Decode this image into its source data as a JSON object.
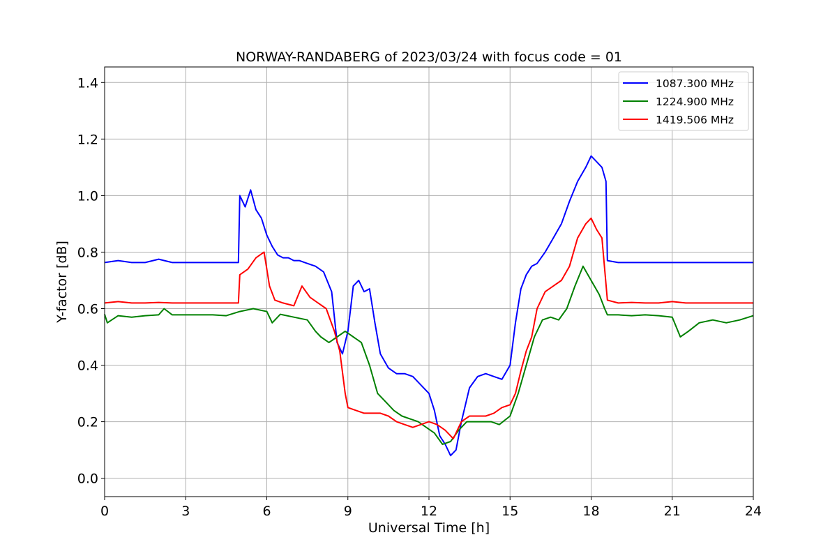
{
  "chart_data": {
    "type": "line",
    "title": "NORWAY-RANDABERG of 2023/03/24 with focus code = 01",
    "xlabel": "Universal Time [h]",
    "ylabel": "Y-factor [dB]",
    "xlim": [
      0,
      24
    ],
    "ylim": [
      -0.065,
      1.455
    ],
    "xticks": [
      0,
      3,
      6,
      9,
      12,
      15,
      18,
      21,
      24
    ],
    "yticks": [
      0.0,
      0.2,
      0.4,
      0.6,
      0.8,
      1.0,
      1.2,
      1.4
    ],
    "ytick_labels": [
      "0.0",
      "0.2",
      "0.4",
      "0.6",
      "0.8",
      "1.0",
      "1.2",
      "1.4"
    ],
    "grid": true,
    "legend_position": "top-right",
    "series": [
      {
        "name": "1087.300 MHz",
        "color": "#0000ff",
        "x": [
          0,
          0.5,
          1.0,
          1.5,
          2.0,
          2.5,
          3.0,
          3.5,
          4.0,
          4.5,
          4.95,
          5.0,
          5.2,
          5.4,
          5.6,
          5.8,
          6.0,
          6.2,
          6.4,
          6.6,
          6.8,
          7.0,
          7.2,
          7.5,
          7.8,
          8.1,
          8.4,
          8.6,
          8.8,
          9.0,
          9.2,
          9.4,
          9.6,
          9.8,
          10.0,
          10.2,
          10.5,
          10.8,
          11.1,
          11.4,
          11.7,
          12.0,
          12.2,
          12.4,
          12.6,
          12.8,
          13.0,
          13.2,
          13.5,
          13.8,
          14.1,
          14.4,
          14.7,
          15.0,
          15.2,
          15.4,
          15.6,
          15.8,
          16.0,
          16.3,
          16.6,
          16.9,
          17.2,
          17.5,
          17.8,
          18.0,
          18.2,
          18.4,
          18.55,
          18.6,
          19.0,
          19.5,
          20.0,
          20.5,
          21.0,
          21.5,
          22.0,
          22.5,
          23.0,
          23.5,
          24.0
        ],
        "values": [
          0.763,
          0.77,
          0.763,
          0.763,
          0.775,
          0.763,
          0.763,
          0.763,
          0.763,
          0.763,
          0.763,
          1.0,
          0.96,
          1.02,
          0.95,
          0.92,
          0.86,
          0.82,
          0.79,
          0.78,
          0.78,
          0.77,
          0.77,
          0.76,
          0.75,
          0.73,
          0.66,
          0.48,
          0.44,
          0.52,
          0.68,
          0.7,
          0.66,
          0.67,
          0.55,
          0.44,
          0.39,
          0.37,
          0.37,
          0.36,
          0.33,
          0.3,
          0.24,
          0.15,
          0.12,
          0.08,
          0.1,
          0.2,
          0.32,
          0.36,
          0.37,
          0.36,
          0.35,
          0.4,
          0.55,
          0.67,
          0.72,
          0.75,
          0.76,
          0.8,
          0.85,
          0.9,
          0.98,
          1.05,
          1.1,
          1.14,
          1.12,
          1.1,
          1.05,
          0.77,
          0.763,
          0.763,
          0.763,
          0.763,
          0.763,
          0.763,
          0.763,
          0.763,
          0.763,
          0.763,
          0.763
        ]
      },
      {
        "name": "1224.900 MHz",
        "color": "#008000",
        "x": [
          0,
          0.1,
          0.5,
          1.0,
          1.5,
          2.0,
          2.2,
          2.5,
          3.0,
          3.5,
          4.0,
          4.5,
          5.0,
          5.5,
          6.0,
          6.2,
          6.5,
          7.0,
          7.5,
          7.8,
          8.0,
          8.3,
          8.6,
          8.9,
          9.2,
          9.5,
          9.8,
          10.1,
          10.4,
          10.7,
          11.0,
          11.3,
          11.6,
          11.9,
          12.2,
          12.5,
          12.8,
          13.1,
          13.4,
          13.7,
          14.0,
          14.3,
          14.6,
          15.0,
          15.3,
          15.6,
          15.9,
          16.2,
          16.5,
          16.8,
          17.1,
          17.4,
          17.7,
          18.0,
          18.3,
          18.5,
          18.6,
          19.0,
          19.5,
          20.0,
          20.5,
          21.0,
          21.3,
          21.6,
          22.0,
          22.5,
          23.0,
          23.5,
          24.0
        ],
        "values": [
          0.58,
          0.55,
          0.575,
          0.57,
          0.575,
          0.578,
          0.6,
          0.578,
          0.578,
          0.578,
          0.578,
          0.575,
          0.59,
          0.6,
          0.59,
          0.55,
          0.58,
          0.57,
          0.56,
          0.52,
          0.5,
          0.48,
          0.5,
          0.52,
          0.5,
          0.48,
          0.4,
          0.3,
          0.27,
          0.24,
          0.22,
          0.21,
          0.2,
          0.18,
          0.16,
          0.12,
          0.13,
          0.17,
          0.2,
          0.2,
          0.2,
          0.2,
          0.19,
          0.22,
          0.3,
          0.4,
          0.5,
          0.56,
          0.57,
          0.56,
          0.6,
          0.68,
          0.75,
          0.7,
          0.65,
          0.6,
          0.578,
          0.578,
          0.575,
          0.578,
          0.575,
          0.57,
          0.5,
          0.52,
          0.55,
          0.56,
          0.55,
          0.56,
          0.575
        ]
      },
      {
        "name": "1419.506 MHz",
        "color": "#ff0000",
        "x": [
          0,
          0.5,
          1.0,
          1.5,
          2.0,
          2.5,
          3.0,
          3.5,
          4.0,
          4.5,
          4.95,
          5.0,
          5.3,
          5.6,
          5.9,
          6.1,
          6.3,
          6.6,
          7.0,
          7.3,
          7.6,
          7.9,
          8.2,
          8.5,
          8.7,
          8.9,
          9.0,
          9.3,
          9.6,
          9.9,
          10.2,
          10.5,
          10.8,
          11.1,
          11.4,
          11.7,
          12.0,
          12.3,
          12.6,
          12.9,
          13.2,
          13.5,
          13.8,
          14.1,
          14.4,
          14.7,
          15.0,
          15.2,
          15.4,
          15.6,
          15.8,
          16.0,
          16.3,
          16.6,
          16.9,
          17.2,
          17.5,
          17.8,
          18.0,
          18.2,
          18.4,
          18.6,
          19.0,
          19.5,
          20.0,
          20.5,
          21.0,
          21.5,
          22.0,
          22.5,
          23.0,
          23.5,
          24.0
        ],
        "values": [
          0.62,
          0.625,
          0.62,
          0.62,
          0.622,
          0.62,
          0.62,
          0.62,
          0.62,
          0.62,
          0.62,
          0.72,
          0.74,
          0.78,
          0.8,
          0.68,
          0.63,
          0.62,
          0.61,
          0.68,
          0.64,
          0.62,
          0.6,
          0.52,
          0.45,
          0.3,
          0.25,
          0.24,
          0.23,
          0.23,
          0.23,
          0.22,
          0.2,
          0.19,
          0.18,
          0.19,
          0.2,
          0.19,
          0.17,
          0.14,
          0.2,
          0.22,
          0.22,
          0.22,
          0.23,
          0.25,
          0.26,
          0.3,
          0.38,
          0.45,
          0.5,
          0.6,
          0.66,
          0.68,
          0.7,
          0.75,
          0.85,
          0.9,
          0.92,
          0.88,
          0.85,
          0.63,
          0.62,
          0.622,
          0.62,
          0.62,
          0.625,
          0.62,
          0.62,
          0.62,
          0.62,
          0.62,
          0.62
        ]
      }
    ]
  }
}
